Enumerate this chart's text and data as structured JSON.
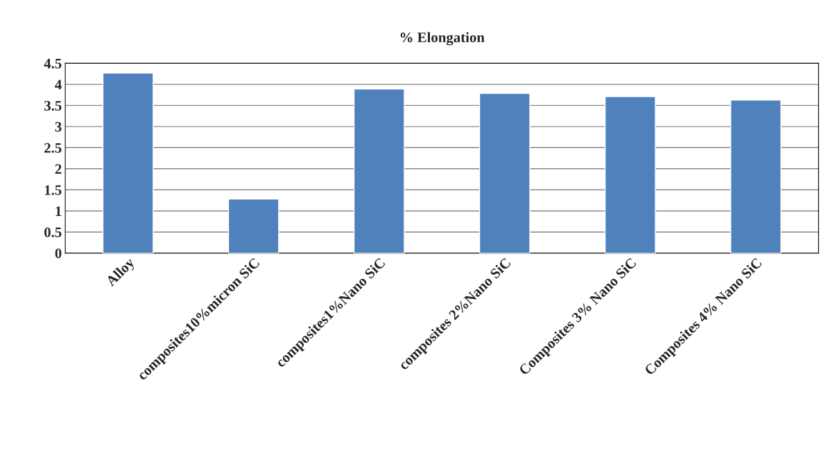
{
  "chart_data": {
    "type": "bar",
    "title": "% Elongation",
    "categories": [
      "Alloy",
      "composites10%micron SiC",
      "composites1%Nano SiC",
      "composites 2%Nano SiC",
      "Composites 3% Nano SiC",
      "Composites 4% Nano SiC"
    ],
    "values": [
      4.27,
      1.28,
      3.89,
      3.79,
      3.71,
      3.63
    ],
    "color": "#4f81bd",
    "ylim": [
      0,
      4.5
    ],
    "yticks": [
      0,
      0.5,
      1,
      1.5,
      2,
      2.5,
      3,
      3.5,
      4,
      4.5
    ],
    "grid": "y",
    "legend": false
  }
}
